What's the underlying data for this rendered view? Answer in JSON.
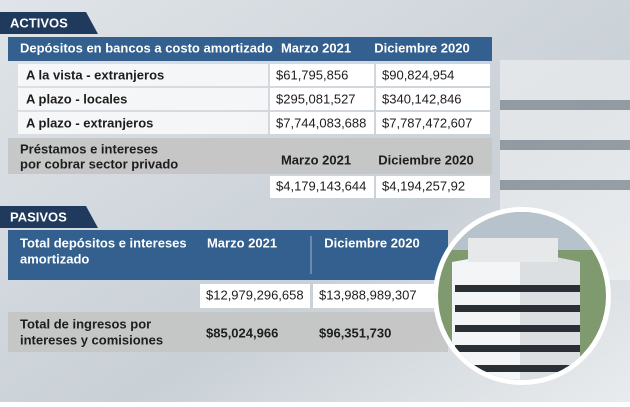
{
  "activos": {
    "title": "ACTIVOS",
    "header": [
      "Depósitos en bancos a costo amortizado",
      "Marzo 2021",
      "Diciembre 2020"
    ],
    "rows": [
      [
        "A la vista - extranjeros",
        "$61,795,856",
        "$90,824,954"
      ],
      [
        "A plazo - locales",
        "$295,081,527",
        "$340,142,846"
      ],
      [
        "A plazo - extranjeros",
        "$7,744,083,688",
        "$7,787,472,607"
      ]
    ],
    "prestamos": {
      "label": [
        "Préstamos e intereses",
        "por cobrar sector privado"
      ],
      "header": [
        "Marzo 2021",
        "Diciembre 2020"
      ],
      "values": [
        "$4,179,143,644",
        "$4,194,257,92"
      ]
    }
  },
  "pasivos": {
    "title": "PASIVOS",
    "depositos": {
      "label": [
        "Total depósitos e intereses",
        "amortizado"
      ],
      "header": [
        "Marzo 2021",
        "Diciembre 2020"
      ],
      "values": [
        "$12,979,296,658",
        "$13,988,989,307"
      ]
    },
    "ingresos": {
      "label": [
        "Total de ingresos por",
        "intereses y comisiones"
      ],
      "values": [
        "$85,024,966",
        "$96,351,730"
      ]
    }
  }
}
